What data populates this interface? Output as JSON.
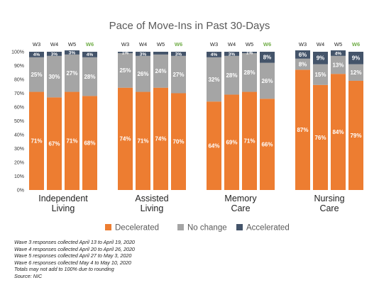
{
  "chart_data": {
    "type": "bar",
    "stacked": true,
    "title": "Pace of Move-Ins in Past 30-Days",
    "yaxis": {
      "min": 0,
      "max": 100,
      "step": 10,
      "format": "percent"
    },
    "waves": [
      "W3",
      "W4",
      "W5",
      "W6"
    ],
    "highlight_wave": "W6",
    "groups": [
      "Independent Living",
      "Assisted Living",
      "Memory Care",
      "Nursing Care"
    ],
    "group_labels": [
      [
        "Independent",
        "Living"
      ],
      [
        "Assisted",
        "Living"
      ],
      [
        "Memory",
        "Care"
      ],
      [
        "Nursing",
        "Care"
      ]
    ],
    "series": [
      {
        "name": "Decelerated",
        "color": "#ED7D31",
        "values": [
          [
            71,
            67,
            71,
            68
          ],
          [
            74,
            71,
            74,
            70
          ],
          [
            64,
            69,
            71,
            66
          ],
          [
            87,
            76,
            84,
            79
          ]
        ]
      },
      {
        "name": "No change",
        "color": "#A5A5A5",
        "values": [
          [
            25,
            30,
            27,
            28
          ],
          [
            25,
            26,
            24,
            27
          ],
          [
            32,
            28,
            28,
            26
          ],
          [
            8,
            15,
            13,
            12
          ]
        ]
      },
      {
        "name": "Accelerated",
        "color": "#44546A",
        "values": [
          [
            4,
            3,
            3,
            4
          ],
          [
            1,
            3,
            2,
            3
          ],
          [
            4,
            3,
            1,
            8
          ],
          [
            6,
            9,
            4,
            9
          ]
        ]
      }
    ],
    "hidden_labels": [
      [
        1,
        0
      ],
      [
        1,
        2
      ],
      [
        2,
        2
      ]
    ],
    "legend": "bottom"
  },
  "colors": {
    "highlight": "#70AD47",
    "axis_text": "#595959",
    "label_text": "#ffffff"
  },
  "notes": [
    "Wave 3 responses collected April 13 to April 19, 2020",
    "Wave 4 responses collected April 20 to April 26, 2020",
    "Wave 5 responses collected April 27 to May 3, 2020",
    "Wave 6 responses collected May 4 to May 10, 2020",
    "Totals may not add to 100% due to rounding",
    "Source: NIC"
  ]
}
